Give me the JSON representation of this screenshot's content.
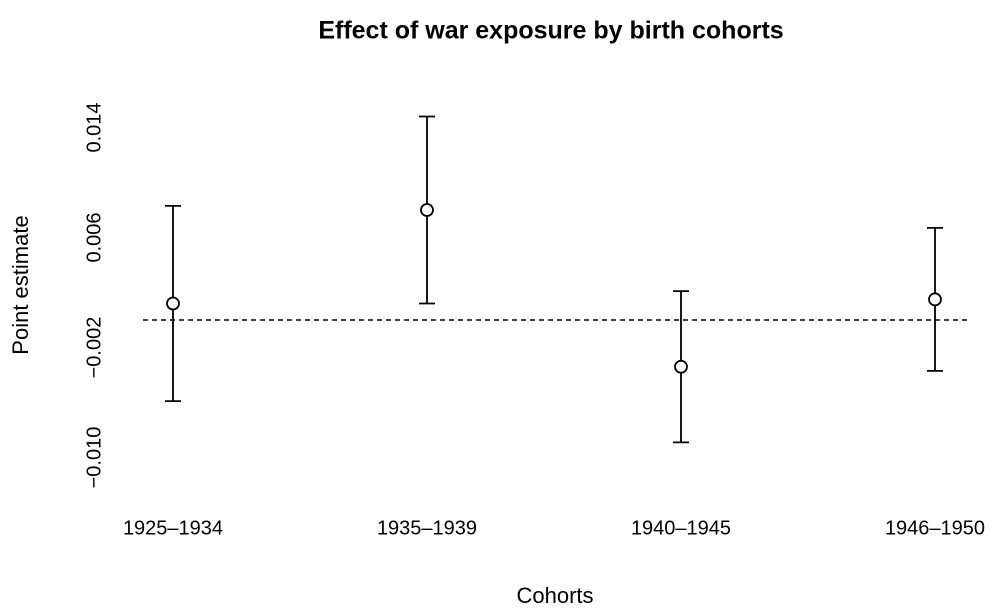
{
  "chart_data": {
    "type": "errorbar",
    "title": "Effect of war exposure by birth cohorts",
    "x_label": "Cohorts",
    "y_label": "Point estimate",
    "categories": [
      "1925–1934",
      "1935–1939",
      "1940–1945",
      "1946–1950"
    ],
    "values": [
      0.0012,
      0.008,
      -0.0034,
      0.0015
    ],
    "errors": [
      0.0071,
      0.0068,
      0.0055,
      0.0052
    ],
    "color": "#000000",
    "reference_line": 0,
    "ylim": [
      -0.0112,
      0.0152
    ],
    "yticks": [
      {
        "value": -0.01,
        "label": "−0.010"
      },
      {
        "value": -0.002,
        "label": "−0.002"
      },
      0.006,
      0.014
    ],
    "grid": false
  }
}
